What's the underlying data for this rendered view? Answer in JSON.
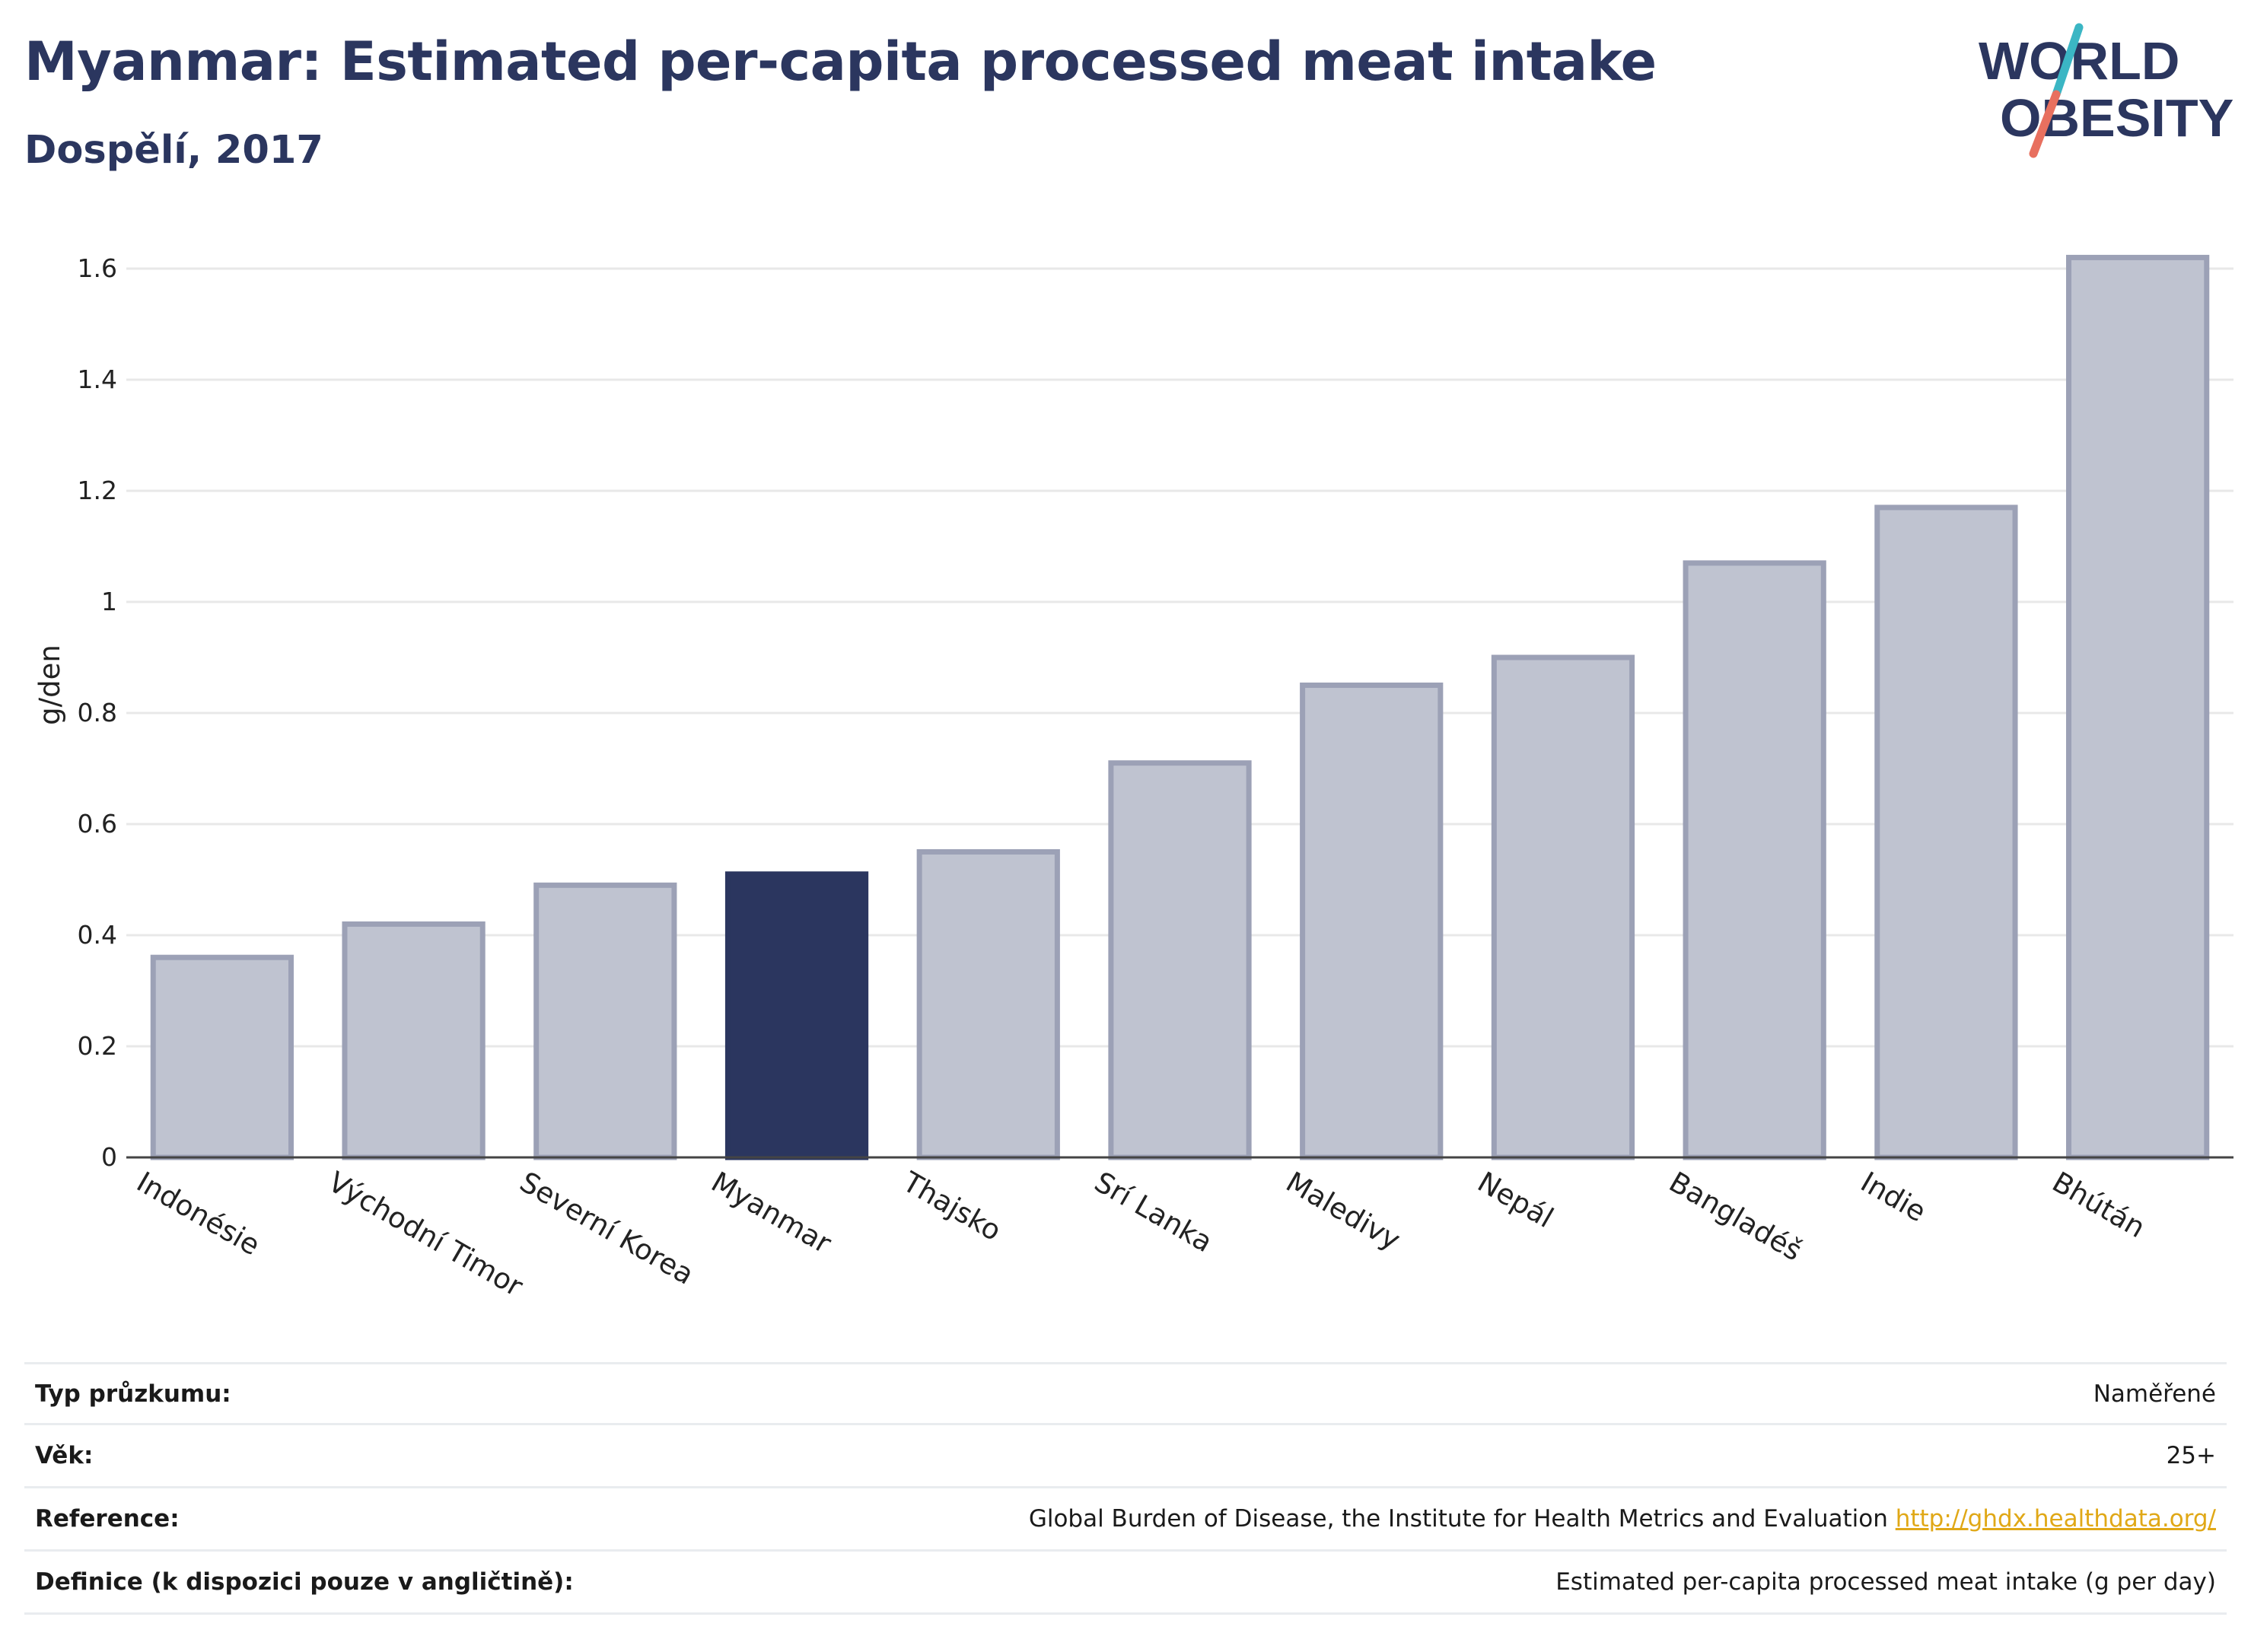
{
  "header": {
    "title": "Myanmar: Estimated per-capita processed meat intake",
    "subtitle": "Dospělí, 2017"
  },
  "logo": {
    "line1": "WORLD",
    "line2": "OBESITY"
  },
  "colors": {
    "highlight": "#2b365f",
    "bar_fill": "#bfc3d0",
    "bar_stroke": "#9ca1b6",
    "grid": "#e8e8e8",
    "title": "#2b365f",
    "logo_teal": "#3bb6c4",
    "logo_coral": "#e8705f",
    "link": "#e0a817"
  },
  "chart_data": {
    "type": "bar",
    "ylabel": "g/den",
    "xlabel": "",
    "ylim": [
      0,
      1.7
    ],
    "yticks": [
      0,
      0.2,
      0.4,
      0.6,
      0.8,
      1,
      1.2,
      1.4,
      1.6
    ],
    "ytick_labels": [
      "0",
      "0.2",
      "0.4",
      "0.6",
      "0.8",
      "1",
      "1.2",
      "1.4",
      "1.6"
    ],
    "grid": true,
    "categories": [
      "Indonésie",
      "Východní Timor",
      "Severní Korea",
      "Myanmar",
      "Thajsko",
      "Srí Lanka",
      "Maledivy",
      "Nepál",
      "Bangladéš",
      "Indie",
      "Bhútán"
    ],
    "values": [
      0.36,
      0.42,
      0.49,
      0.51,
      0.55,
      0.71,
      0.85,
      0.9,
      1.07,
      1.17,
      1.62
    ],
    "highlight": "Myanmar"
  },
  "info_table": {
    "rows": [
      {
        "label": "Typ průzkumu:",
        "value": "Naměřené"
      },
      {
        "label": "Věk:",
        "value": "25+"
      },
      {
        "label": "Reference:",
        "value": "Global Burden of Disease, the Institute for Health Metrics and Evaluation ",
        "link": "http://ghdx.healthdata.org/"
      },
      {
        "label": "Definice (k dispozici pouze v angličtině):",
        "value": "Estimated per-capita processed meat intake (g per day)"
      }
    ]
  }
}
